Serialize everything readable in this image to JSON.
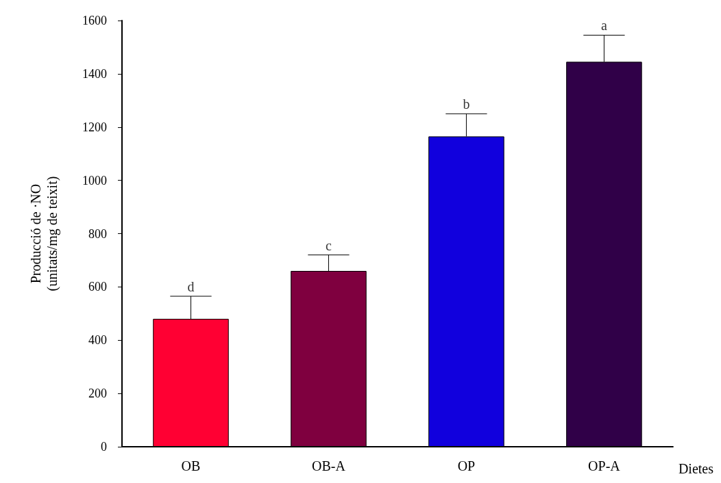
{
  "chart_data": {
    "type": "bar",
    "ylabel": "Producció de ·NO\n(unitats/mg de teixit)",
    "xlabel": "Dietes",
    "categories": [
      "OB",
      "OB-A",
      "OP",
      "OP-A"
    ],
    "values": [
      480,
      660,
      1165,
      1445
    ],
    "colors": [
      "#ff0033",
      "#7f003f",
      "#1100dd",
      "#300048"
    ],
    "errors": [
      [
        480,
        565
      ],
      [
        660,
        720
      ],
      [
        1165,
        1250
      ],
      [
        1445,
        1545
      ]
    ],
    "ylim": [
      0,
      1600
    ],
    "yticks": [
      0,
      200,
      400,
      600,
      800,
      1000,
      1200,
      1400,
      1600
    ],
    "grid": false,
    "annotations": [
      {
        "text": "d",
        "x": "OB",
        "y": 565
      },
      {
        "text": "c",
        "x": "OB-A",
        "y": 720
      },
      {
        "text": "b",
        "x": "OP",
        "y": 1250
      },
      {
        "text": "a",
        "x": "OP-A",
        "y": 1545
      }
    ]
  }
}
